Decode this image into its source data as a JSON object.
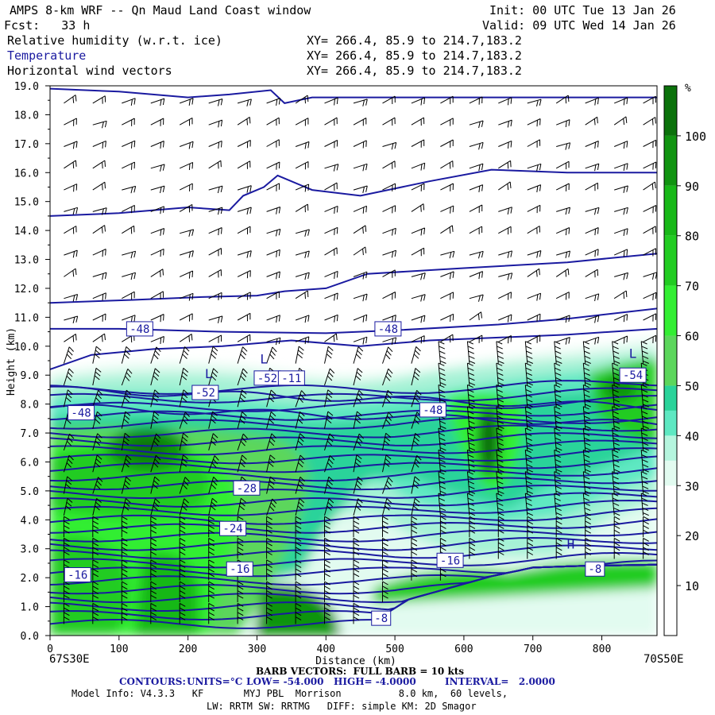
{
  "header": {
    "title": "AMPS 8-km WRF -- Qn Maud Land Coast window",
    "fcst": "Fcst:   33 h",
    "init": "Init: 00 UTC Tue 13 Jan 26",
    "valid": "Valid: 09 UTC Wed 14 Jan 26",
    "fields": [
      {
        "name": "Relative humidity (w.r.t. ice)",
        "xy": "XY= 266.4, 85.9 to 214.7,183.2",
        "color": "#000000"
      },
      {
        "name": "Temperature",
        "xy": "XY= 266.4, 85.9 to 214.7,183.2",
        "color": "#1a1aa0"
      },
      {
        "name": "Horizontal wind vectors",
        "xy": "XY= 266.4, 85.9 to 214.7,183.2",
        "color": "#000000"
      }
    ]
  },
  "footer": {
    "left_lonlat": "67S30E",
    "right_lonlat": "70S50E",
    "barb_note": "BARB VECTORS:  FULL BARB = 10 kts",
    "contours_label": "CONTOURS:",
    "units": "UNITS=°C",
    "low": "LOW= -54.000",
    "high": "HIGH= -4.0000",
    "interval": "INTERVAL=   2.0000",
    "model_info": "Model Info: V4.3.3   KF       MYJ PBL  Morrison          8.0 km,  60 levels,",
    "model_info2": "LW: RRTM SW: RRTMG   DIFF: simple KM: 2D Smagor"
  },
  "chart_data": {
    "type": "heatmap",
    "title": "Cross-section: Relative humidity (w.r.t. ice), Temperature, Horizontal wind vectors",
    "xlabel": "Distance (km)",
    "ylabel": "Height (km)",
    "xlim": [
      0,
      880
    ],
    "ylim": [
      0,
      19
    ],
    "x_ticks": [
      0,
      100,
      200,
      300,
      400,
      500,
      600,
      700,
      800
    ],
    "y_ticks": [
      "0.0",
      "1.0",
      "2.0",
      "3.0",
      "4.0",
      "5.0",
      "6.0",
      "7.0",
      "8.0",
      "9.0",
      "10.0",
      "11.0",
      "12.0",
      "13.0",
      "14.0",
      "15.0",
      "16.0",
      "17.0",
      "18.0",
      "19.0"
    ],
    "colorbar": {
      "unit": "%",
      "ticks": [
        "10",
        "20",
        "30",
        "40",
        "50",
        "60",
        "70",
        "80",
        "90",
        "100"
      ],
      "colors": [
        "#ffffff",
        "#ffffff",
        "#ffffff",
        "#e2fbf0",
        "#b5f5de",
        "#5ee8c2",
        "#2ad39a",
        "#5cd65c",
        "#33ee33",
        "#22cc22",
        "#18b818",
        "#119411",
        "#0b720b",
        "#3d5a16"
      ],
      "bounds": [
        0,
        10,
        20,
        30,
        35,
        40,
        45,
        50,
        60,
        70,
        80,
        90,
        100,
        110
      ]
    },
    "temperature_labels": [
      {
        "text": "-48",
        "x": 130,
        "y": 10.6
      },
      {
        "text": "-48",
        "x": 490,
        "y": 10.6
      },
      {
        "text": "-48",
        "x": 45,
        "y": 7.7
      },
      {
        "text": "-48",
        "x": 555,
        "y": 7.8
      },
      {
        "text": "-52",
        "x": 225,
        "y": 8.4
      },
      {
        "text": "-52",
        "x": 315,
        "y": 8.9
      },
      {
        "text": "-11",
        "x": 350,
        "y": 8.9
      },
      {
        "text": "-54",
        "x": 845,
        "y": 9.0
      },
      {
        "text": "-28",
        "x": 285,
        "y": 5.1
      },
      {
        "text": "-24",
        "x": 265,
        "y": 3.7
      },
      {
        "text": "-16",
        "x": 40,
        "y": 2.1
      },
      {
        "text": "-16",
        "x": 275,
        "y": 2.3
      },
      {
        "text": "-16",
        "x": 580,
        "y": 2.6
      },
      {
        "text": "-8",
        "x": 480,
        "y": 0.6
      },
      {
        "text": "-8",
        "x": 790,
        "y": 2.3
      }
    ],
    "extrema": [
      {
        "text": "L",
        "x": 230,
        "y": 8.9
      },
      {
        "text": "L",
        "x": 310,
        "y": 9.4
      },
      {
        "text": "L",
        "x": 845,
        "y": 9.6
      },
      {
        "text": "H",
        "x": 755,
        "y": 3.0
      }
    ],
    "terrain": [
      [
        0,
        0
      ],
      [
        450,
        0
      ],
      [
        480,
        0.6
      ],
      [
        520,
        1.2
      ],
      [
        580,
        1.6
      ],
      [
        640,
        2.0
      ],
      [
        700,
        2.3
      ],
      [
        760,
        2.35
      ],
      [
        880,
        2.4
      ]
    ]
  }
}
